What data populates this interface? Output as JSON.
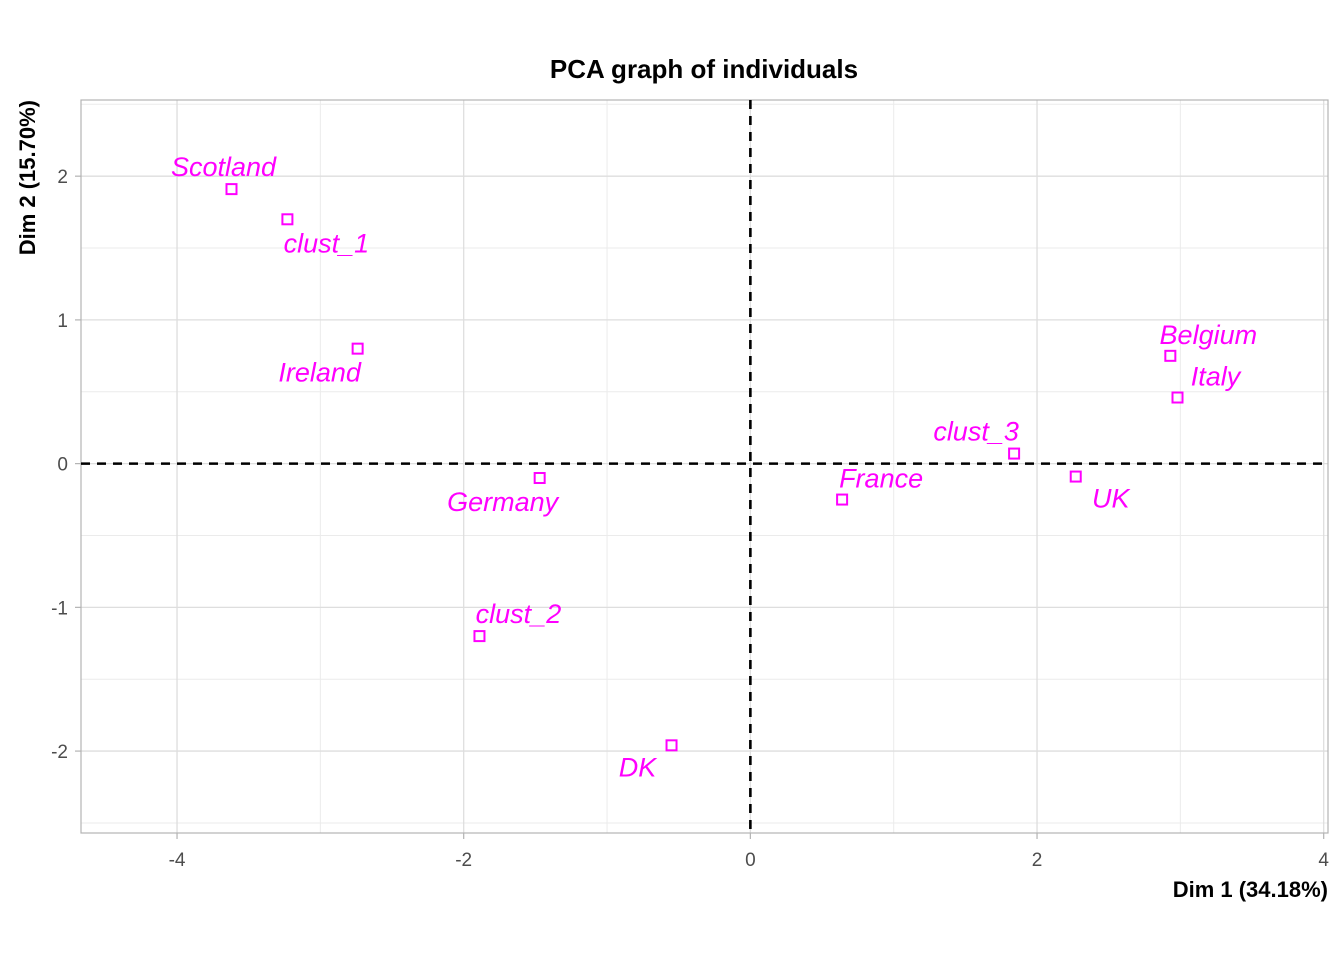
{
  "chart_data": {
    "type": "scatter",
    "title": "PCA graph of individuals",
    "xlabel": "Dim 1 (34.18%)",
    "ylabel": "Dim 2 (15.70%)",
    "xlim": [
      -4.67,
      4.03
    ],
    "ylim": [
      -2.57,
      2.53
    ],
    "xticks": [
      -4,
      -2,
      0,
      2,
      4
    ],
    "yticks": [
      -2,
      -1,
      0,
      1,
      2
    ],
    "grid": true,
    "reference_lines": {
      "x": 0,
      "y": 0,
      "style": "dashed"
    },
    "marker": "open-square",
    "color": "#ff00ff",
    "points": [
      {
        "label": "Scotland",
        "x": -3.62,
        "y": 1.91
      },
      {
        "label": "clust_1",
        "x": -3.23,
        "y": 1.7
      },
      {
        "label": "Ireland",
        "x": -2.74,
        "y": 0.8
      },
      {
        "label": "Germany",
        "x": -1.47,
        "y": -0.1
      },
      {
        "label": "clust_2",
        "x": -1.89,
        "y": -1.2
      },
      {
        "label": "DK",
        "x": -0.55,
        "y": -1.96
      },
      {
        "label": "France",
        "x": 0.64,
        "y": -0.25
      },
      {
        "label": "clust_3",
        "x": 1.84,
        "y": 0.07
      },
      {
        "label": "UK",
        "x": 2.27,
        "y": -0.09
      },
      {
        "label": "Belgium",
        "x": 2.93,
        "y": 0.75
      },
      {
        "label": "Italy",
        "x": 2.98,
        "y": 0.46
      }
    ]
  }
}
